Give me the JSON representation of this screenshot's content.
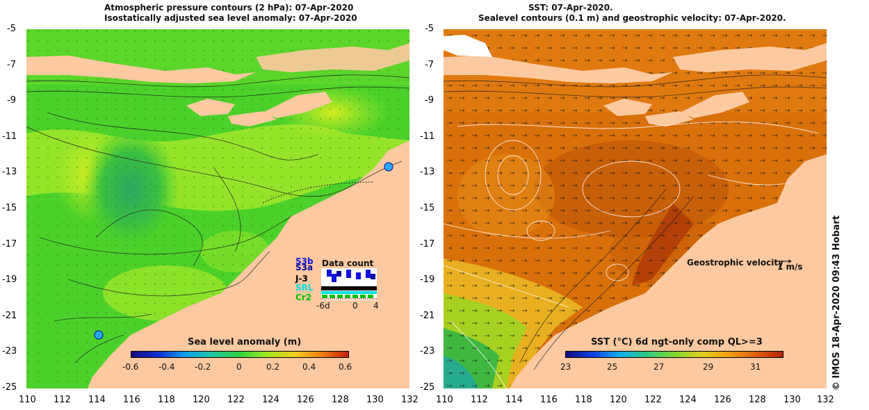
{
  "left_panel": {
    "title_line1": "Atmospheric pressure contours (2 hPa): 07-Apr-2020",
    "title_line2": "Isostatically adjusted sea level anomaly: 07-Apr-2020",
    "lat_ticks": [
      "-5",
      "-7",
      "-9",
      "-11",
      "-13",
      "-15",
      "-17",
      "-19",
      "-21",
      "-23",
      "-25"
    ],
    "lon_ticks": [
      "110",
      "112",
      "114",
      "116",
      "118",
      "120",
      "122",
      "124",
      "126",
      "128",
      "130",
      "132"
    ],
    "colorbar": {
      "title": "Sea level anomaly (m)",
      "ticks": [
        "-0.6",
        "-0.4",
        "-0.2",
        "0",
        "0.2",
        "0.4",
        "0.6"
      ]
    },
    "data_count": {
      "title": "Data count",
      "satellites": [
        {
          "name": "S3b",
          "color": "#1010e0"
        },
        {
          "name": "S3a",
          "color": "#0000a0"
        },
        {
          "name": "J-3",
          "color": "#000000"
        },
        {
          "name": "SRL",
          "color": "#00e0e0"
        },
        {
          "name": "Cr2",
          "color": "#00c000"
        }
      ],
      "axis_ticks": [
        "-6d",
        "0",
        "4"
      ]
    }
  },
  "right_panel": {
    "title_line1": "SST: 07-Apr-2020.",
    "title_line2": "Sealevel contours (0.1 m) and geostrophic velocity: 07-Apr-2020.",
    "lat_ticks": [
      "-5",
      "-7",
      "-9",
      "-11",
      "-13",
      "-15",
      "-17",
      "-19",
      "-21",
      "-23",
      "-25"
    ],
    "lon_ticks": [
      "110",
      "112",
      "114",
      "116",
      "118",
      "120",
      "122",
      "124",
      "126",
      "128",
      "130",
      "132"
    ],
    "velocity_label": "Geostrophic velocity",
    "velocity_scale": "1 m/s",
    "colorbar": {
      "title": "SST (°C) 6d ngt-only comp QL>=3",
      "ticks": [
        "23",
        "25",
        "27",
        "29",
        "31"
      ]
    }
  },
  "credit": "© IMOS 18-Apr-2020 09:43 Hobart",
  "colors": {
    "land": "#fdc9a0",
    "sla_green": "#4cd12a",
    "sla_light": "#a8e82a",
    "sst_orange": "#d9700a",
    "sst_dark": "#b84806"
  }
}
